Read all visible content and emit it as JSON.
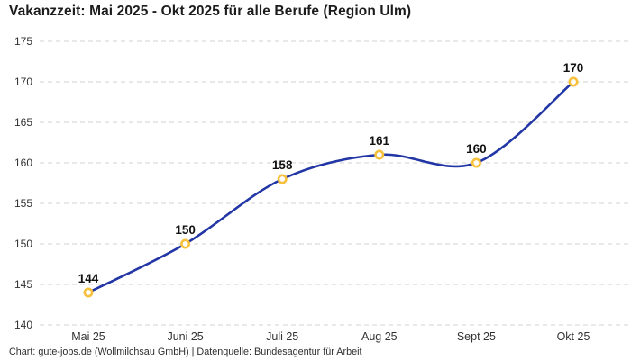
{
  "title": "Vakanzzeit: Mai 2025 - Okt 2025 für alle Berufe (Region Ulm)",
  "footer": "Chart: gute-jobs.de (Wollmilchsau GmbH) | Datenquelle: Bundesagentur für Arbeit",
  "chart_data": {
    "type": "line",
    "title": "Vakanzzeit: Mai 2025 - Okt 2025 für alle Berufe (Region Ulm)",
    "categories": [
      "Mai 25",
      "Juni 25",
      "Juli 25",
      "Aug 25",
      "Sept 25",
      "Okt 25"
    ],
    "series": [
      {
        "name": "Vakanzzeit",
        "values": [
          144,
          150,
          158,
          161,
          160,
          170
        ]
      }
    ],
    "data_labels": [
      "144",
      "150",
      "158",
      "161",
      "160",
      "170"
    ],
    "xlabel": "",
    "ylabel": "",
    "ylim": [
      140,
      175
    ],
    "yticks": [
      140,
      145,
      150,
      155,
      160,
      165,
      170,
      175
    ],
    "grid": "horizontal-dashed",
    "legend": "none",
    "curve": "smooth",
    "marker": "open-circle",
    "colors": {
      "line": "#2236a5",
      "marker_ring": "#f7c13d",
      "marker_fill": "#ffffff",
      "gridline": "#d0d0d0",
      "axis_text": "#333333",
      "data_label_text": "#111111",
      "title_text": "#1c1c1c",
      "footer_text": "#2e2e2e",
      "background": "#ffffff"
    }
  }
}
